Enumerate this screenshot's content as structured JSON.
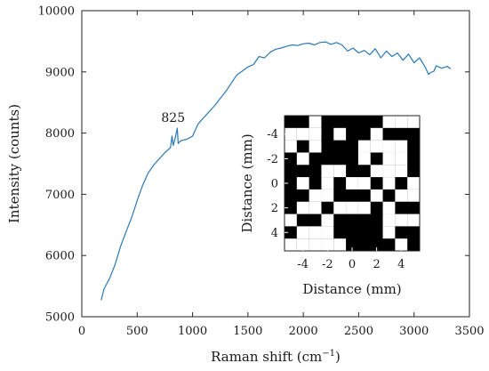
{
  "chart_data": [
    {
      "type": "line",
      "xlabel": "Raman shift (cm",
      "xlabel_sup": "−1",
      "xlabel_end": ")",
      "ylabel": "Intensity (counts)",
      "xlim": [
        0,
        3500
      ],
      "ylim": [
        5000,
        10000
      ],
      "xticks": [
        "0",
        "500",
        "1000",
        "1500",
        "2000",
        "2500",
        "3000",
        "3500"
      ],
      "yticks": [
        "5000",
        "6000",
        "7000",
        "8000",
        "9000",
        "10000"
      ],
      "grid": false,
      "line_color": "#2a78b5",
      "annotations": [
        {
          "text": "825",
          "x": 825,
          "y": 8180
        }
      ],
      "series": [
        {
          "x": [
            175,
            200,
            250,
            300,
            350,
            400,
            450,
            500,
            550,
            600,
            650,
            700,
            750,
            800,
            815,
            825,
            840,
            855,
            862,
            870,
            880,
            900,
            950,
            1000,
            1050,
            1100,
            1200,
            1300,
            1400,
            1500,
            1550,
            1600,
            1650,
            1700,
            1750,
            1800,
            1850,
            1900,
            1950,
            2000,
            2050,
            2100,
            2150,
            2200,
            2250,
            2300,
            2350,
            2400,
            2450,
            2500,
            2550,
            2600,
            2650,
            2700,
            2750,
            2800,
            2850,
            2900,
            2950,
            3000,
            3050,
            3100,
            3130,
            3150,
            3180,
            3200,
            3250,
            3300,
            3330
          ],
          "y": [
            5270,
            5450,
            5620,
            5850,
            6150,
            6390,
            6620,
            6900,
            7150,
            7350,
            7480,
            7580,
            7680,
            7760,
            7950,
            7800,
            7890,
            8020,
            8080,
            7830,
            7850,
            7880,
            7900,
            7950,
            8150,
            8250,
            8450,
            8680,
            8950,
            9080,
            9120,
            9250,
            9230,
            9320,
            9370,
            9390,
            9420,
            9440,
            9430,
            9460,
            9470,
            9440,
            9480,
            9490,
            9450,
            9480,
            9440,
            9340,
            9390,
            9310,
            9350,
            9280,
            9380,
            9230,
            9340,
            9250,
            9310,
            9190,
            9290,
            9150,
            9230,
            9080,
            8960,
            8990,
            9010,
            9100,
            9060,
            9090,
            9050
          ]
        }
      ]
    },
    {
      "type": "heatmap",
      "xlabel": "Distance (mm)",
      "ylabel": "Distance (mm)",
      "xlim": [
        -5.5,
        5.5
      ],
      "ylim": [
        -5.5,
        5.5
      ],
      "y_axis_direction": "down",
      "xticks": [
        "-4",
        "-2",
        "0",
        "2",
        "4"
      ],
      "yticks": [
        "-4",
        "-2",
        "0",
        "2",
        "4"
      ],
      "colors": {
        "background": "#000000",
        "cell": "#ffffff"
      },
      "bright_cells": [
        [
          -3,
          -5
        ],
        [
          3,
          -5
        ],
        [
          4,
          -5
        ],
        [
          5,
          -5
        ],
        [
          -5,
          -4
        ],
        [
          -4,
          -4
        ],
        [
          -3,
          -4
        ],
        [
          -1,
          -4
        ],
        [
          2,
          -4
        ],
        [
          -5,
          -3
        ],
        [
          -3,
          -3
        ],
        [
          1,
          -3
        ],
        [
          2,
          -3
        ],
        [
          3,
          -3
        ],
        [
          4,
          -3
        ],
        [
          -4,
          -2
        ],
        [
          1,
          -2
        ],
        [
          3,
          -2
        ],
        [
          4,
          -2
        ],
        [
          -2,
          -1
        ],
        [
          -1,
          -1
        ],
        [
          2,
          -1
        ],
        [
          3,
          -1
        ],
        [
          4,
          -1
        ],
        [
          -4,
          0
        ],
        [
          -2,
          0
        ],
        [
          0,
          0
        ],
        [
          1,
          0
        ],
        [
          3,
          0
        ],
        [
          5,
          0
        ],
        [
          -2,
          1
        ],
        [
          -3,
          1
        ],
        [
          2,
          1
        ],
        [
          4,
          1
        ],
        [
          5,
          1
        ],
        [
          -4,
          2
        ],
        [
          -3,
          2
        ],
        [
          -1,
          2
        ],
        [
          0,
          2
        ],
        [
          1,
          2
        ],
        [
          3,
          2
        ],
        [
          -5,
          3
        ],
        [
          -2,
          3
        ],
        [
          3,
          3
        ],
        [
          4,
          3
        ],
        [
          5,
          3
        ],
        [
          -4,
          4
        ],
        [
          -3,
          4
        ],
        [
          -2,
          4
        ],
        [
          3,
          4
        ],
        [
          -5,
          5
        ],
        [
          -4,
          5
        ],
        [
          -3,
          5
        ],
        [
          -2,
          5
        ],
        [
          -1,
          5
        ],
        [
          4,
          5
        ]
      ]
    }
  ]
}
